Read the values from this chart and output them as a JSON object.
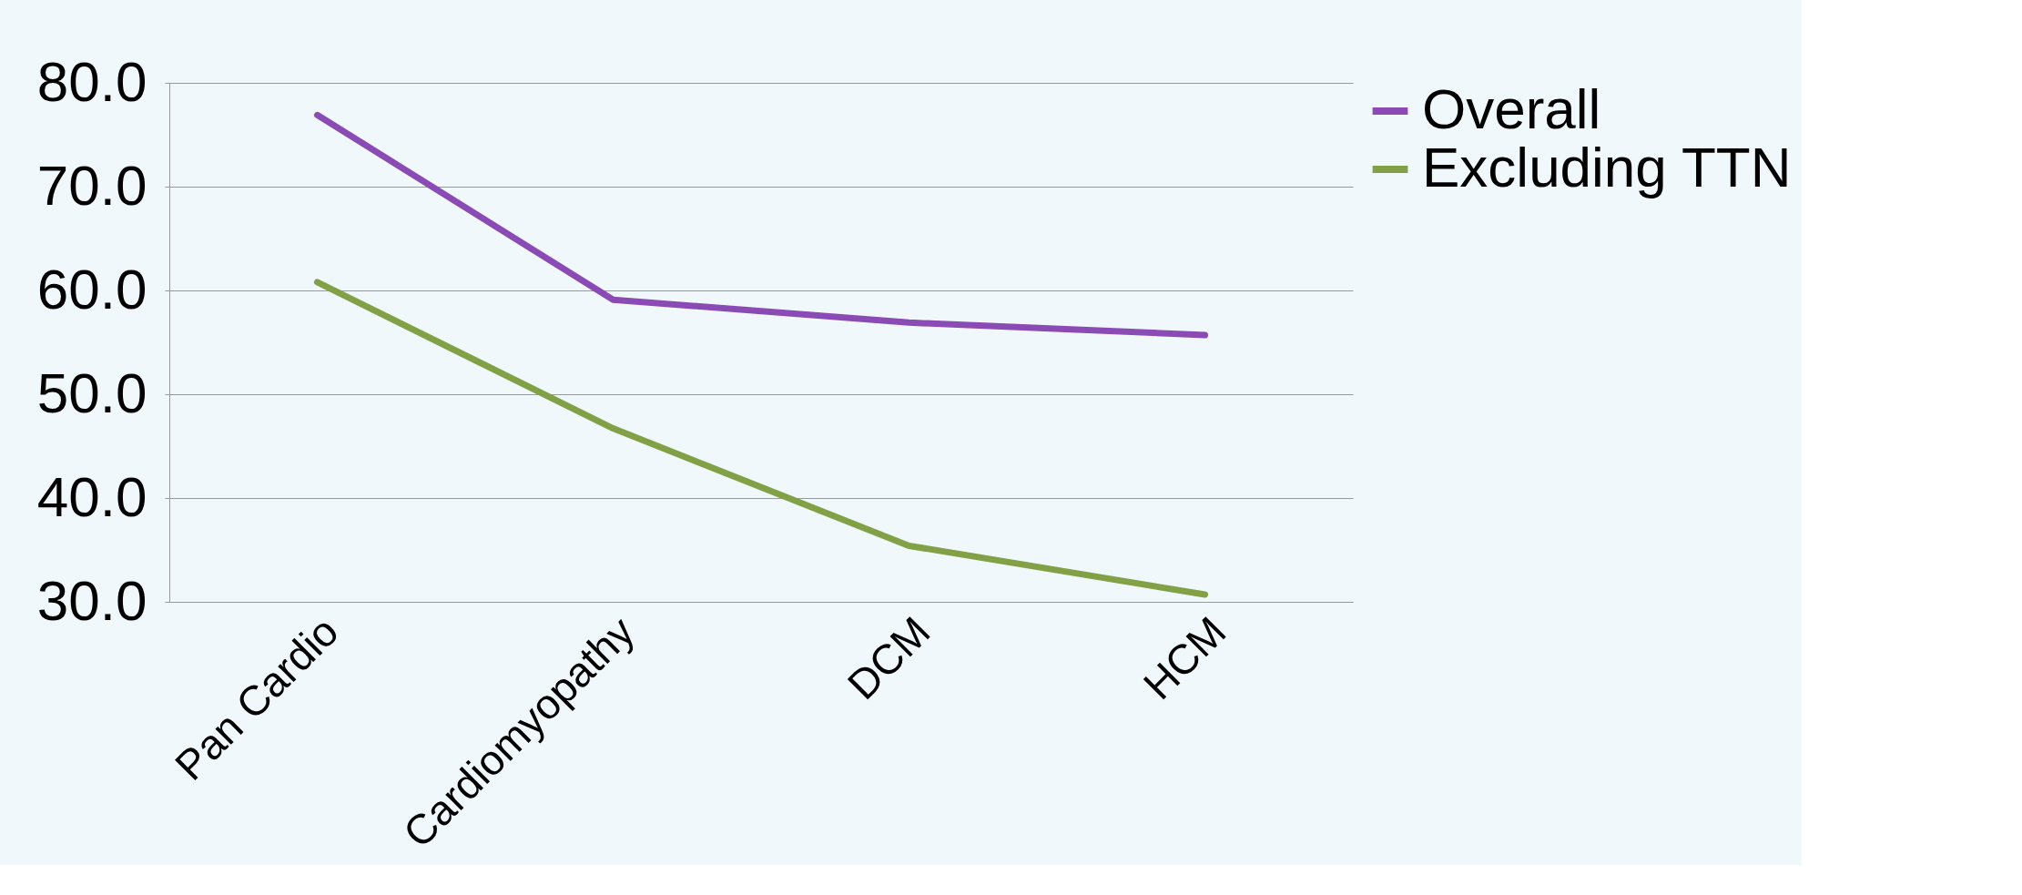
{
  "chart_data": {
    "type": "line",
    "categories": [
      "Pan Cardio",
      "Cardiomyopathy",
      "DCM",
      "HCM"
    ],
    "series": [
      {
        "name": "Overall",
        "color": "#8a4bb5",
        "values": [
          76.9,
          59.1,
          56.9,
          55.7
        ]
      },
      {
        "name": "Excluding TTN",
        "color": "#82a045",
        "values": [
          60.8,
          46.7,
          35.4,
          30.7
        ]
      }
    ],
    "ylim": [
      30,
      80
    ],
    "yticks": [
      {
        "value": 30,
        "label": "30.0"
      },
      {
        "value": 40,
        "label": "40.0"
      },
      {
        "value": 50,
        "label": "50.0"
      },
      {
        "value": 60,
        "label": "60.0"
      },
      {
        "value": 70,
        "label": "70.0"
      },
      {
        "value": 80,
        "label": "80.0"
      }
    ],
    "grid": "y",
    "legend": "right",
    "marker": "none",
    "line_style": "solid"
  }
}
